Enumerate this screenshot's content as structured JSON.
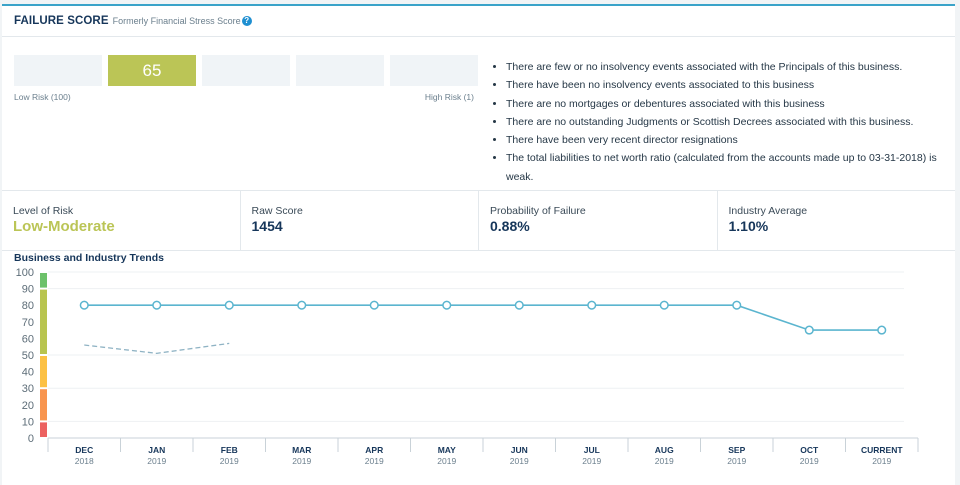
{
  "header": {
    "title": "FAILURE SCORE",
    "subtitle": "Formerly Financial Stress Score",
    "help_icon": "question-circle-icon"
  },
  "score_scale": {
    "segments": [
      "",
      "65",
      "",
      "",
      ""
    ],
    "active_index": 1,
    "active_color": "#bbc556",
    "low_label": "Low Risk (100)",
    "high_label": "High Risk (1)"
  },
  "commentary": [
    "There are few or no insolvency events associated with the Principals of this business.",
    "There have been no insolvency events associated to this business",
    "There are no mortgages or debentures associated with this business",
    "There are no outstanding Judgments or Scottish Decrees associated with this business.",
    "There have been very recent director resignations",
    "The total liabilities to net worth ratio (calculated from the accounts made up to 03-31-2018) is weak."
  ],
  "metrics": {
    "level_of_risk": {
      "label": "Level of Risk",
      "value": "Low-Moderate"
    },
    "raw_score": {
      "label": "Raw Score",
      "value": "1454"
    },
    "probability_of_failure": {
      "label": "Probability of Failure",
      "value": "0.88%"
    },
    "industry_average": {
      "label": "Industry Average",
      "value": "1.10%"
    }
  },
  "trends": {
    "title": "Business and Industry Trends"
  },
  "chart_data": {
    "type": "line",
    "title": "Business and Industry Trends",
    "categories": [
      {
        "month": "DEC",
        "year": "2018"
      },
      {
        "month": "JAN",
        "year": "2019"
      },
      {
        "month": "FEB",
        "year": "2019"
      },
      {
        "month": "MAR",
        "year": "2019"
      },
      {
        "month": "APR",
        "year": "2019"
      },
      {
        "month": "MAY",
        "year": "2019"
      },
      {
        "month": "JUN",
        "year": "2019"
      },
      {
        "month": "JUL",
        "year": "2019"
      },
      {
        "month": "AUG",
        "year": "2019"
      },
      {
        "month": "SEP",
        "year": "2019"
      },
      {
        "month": "OCT",
        "year": "2019"
      },
      {
        "month": "CURRENT",
        "year": "2019"
      }
    ],
    "series": [
      {
        "name": "Business",
        "style": "solid-markers",
        "color": "#5bb5cf",
        "values": [
          80,
          80,
          80,
          80,
          80,
          80,
          80,
          80,
          80,
          80,
          65,
          65
        ]
      },
      {
        "name": "Industry",
        "style": "dashed",
        "color": "#8fb3c4",
        "values": [
          56,
          51,
          57,
          null,
          null,
          null,
          null,
          null,
          null,
          null,
          null,
          null
        ]
      }
    ],
    "yticks": [
      0,
      10,
      20,
      30,
      40,
      50,
      60,
      70,
      80,
      90,
      100
    ],
    "ylim": [
      0,
      100
    ],
    "gridlines": [
      10,
      30,
      50,
      90,
      100
    ],
    "risk_bands": [
      {
        "from": 90,
        "to": 100,
        "color": "#6cc16a"
      },
      {
        "from": 50,
        "to": 90,
        "color": "#b8c44f"
      },
      {
        "from": 30,
        "to": 50,
        "color": "#fcc145"
      },
      {
        "from": 10,
        "to": 30,
        "color": "#f8954f"
      },
      {
        "from": 0,
        "to": 10,
        "color": "#ec6160"
      }
    ],
    "xlabel": "",
    "ylabel": ""
  }
}
